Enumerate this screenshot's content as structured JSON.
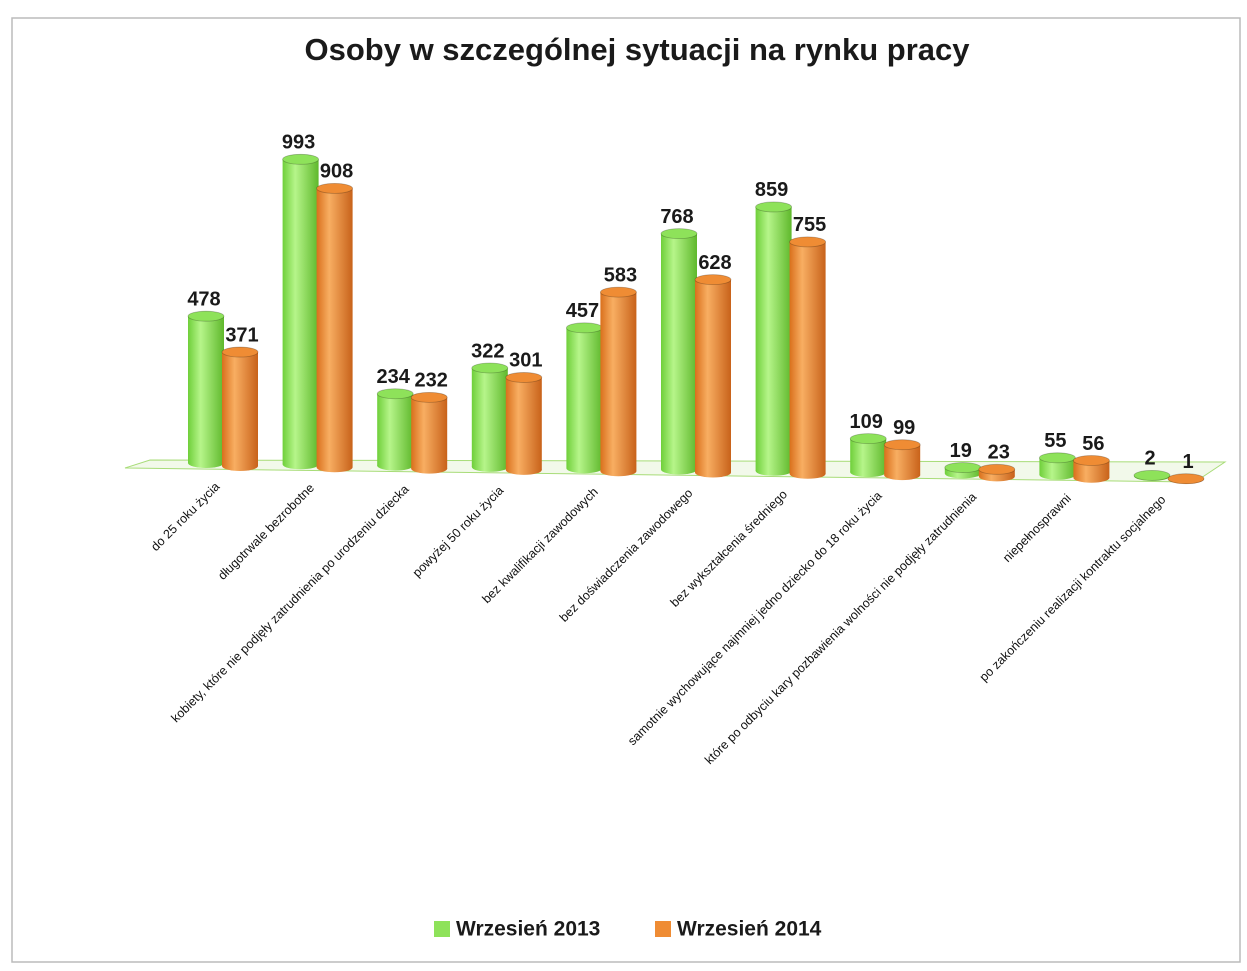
{
  "chart_data": {
    "type": "bar",
    "title": "Osoby w szczególnej sytuacji na rynku pracy",
    "categories": [
      "do 25 roku życia",
      "długotrwale bezrobotne",
      "kobiety, które nie podjęły zatrudnienia po urodzeniu dziecka",
      "powyżej 50 roku życia",
      "bez kwalifikacji zawodowych",
      "bez doświadczenia zawodowego",
      "bez wykształcenia średniego",
      "samotnie wychowujące najmniej jedno dziecko do 18 roku życia",
      "które po odbyciu kary pozbawienia wolności nie podjęły zatrudnienia",
      "niepełnosprawni",
      "po zakończeniu realizacji kontraktu socjalnego"
    ],
    "series": [
      {
        "name": "Wrzesień 2013",
        "color": "#8ee25a",
        "values": [
          478,
          993,
          234,
          322,
          457,
          768,
          859,
          109,
          19,
          55,
          2
        ]
      },
      {
        "name": "Wrzesień 2014",
        "color": "#ef8c34",
        "values": [
          371,
          908,
          232,
          301,
          583,
          628,
          755,
          99,
          23,
          56,
          1
        ]
      }
    ],
    "legend": "bottom"
  }
}
